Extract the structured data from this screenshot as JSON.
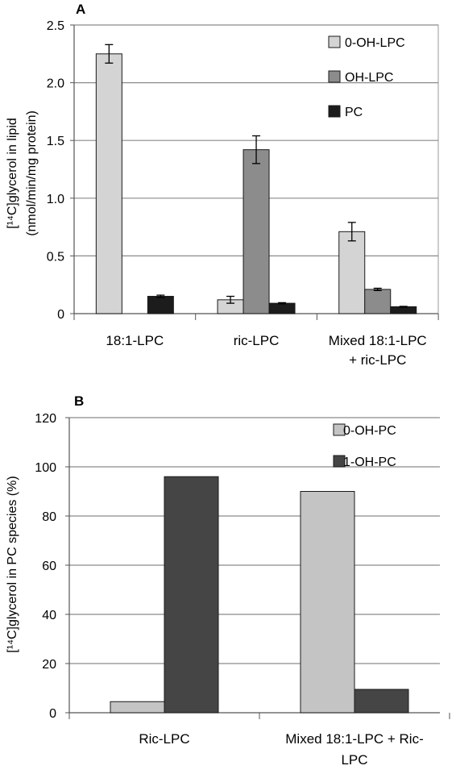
{
  "chart_data": [
    {
      "panel": "A",
      "type": "bar",
      "ylabel_line1": "[¹⁴C]glycerol in lipid",
      "ylabel_line2": "(nmol/min/mg  protein)",
      "ylim": [
        0,
        2.5
      ],
      "ytick_labels": [
        "0",
        "0.5",
        "1.0",
        "1.5",
        "2.0",
        "2.5"
      ],
      "grid": true,
      "legend_placement": "top-right",
      "categories": [
        [
          "18:1-LPC"
        ],
        [
          "ric-LPC"
        ],
        [
          "Mixed 18:1-LPC",
          "+ ric-LPC"
        ]
      ],
      "series": [
        {
          "name": "0-OH-LPC",
          "color": "#d4d4d4",
          "values": [
            2.25,
            0.12,
            0.71
          ],
          "errors": [
            0.08,
            0.03,
            0.08
          ]
        },
        {
          "name": "OH-LPC",
          "color": "#8c8c8c",
          "values": [
            0,
            1.42,
            0.21
          ],
          "errors": [
            0,
            0.12,
            0.01
          ]
        },
        {
          "name": "PC",
          "color": "#1c1c1c",
          "values": [
            0.15,
            0.09,
            0.06
          ],
          "errors": [
            0.01,
            0.005,
            0.003
          ]
        }
      ]
    },
    {
      "panel": "B",
      "type": "bar",
      "ylabel_line1": "[¹⁴C]glycerol in PC species (%)",
      "ylim": [
        0,
        120
      ],
      "ytick_labels": [
        "0",
        "20",
        "40",
        "60",
        "80",
        "100",
        "120"
      ],
      "grid": true,
      "legend_placement": "top-right",
      "categories": [
        [
          "Ric-LPC"
        ],
        [
          "Mixed 18:1-LPC + Ric-",
          "LPC"
        ]
      ],
      "series": [
        {
          "name": "0-OH-PC",
          "color": "#c4c4c4",
          "values": [
            4.5,
            90
          ]
        },
        {
          "name": "1-OH-PC",
          "color": "#454545",
          "values": [
            96,
            9.5
          ]
        }
      ]
    }
  ]
}
